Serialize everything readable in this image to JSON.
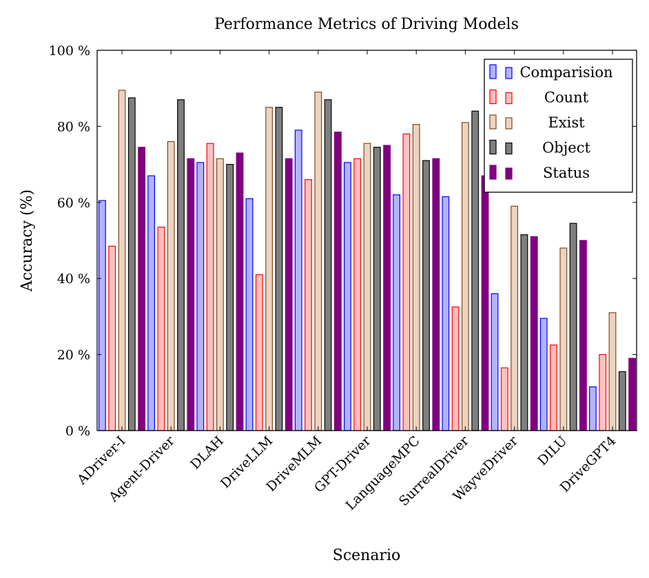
{
  "chart_data": {
    "type": "bar",
    "title": "Performance Metrics of Driving Models",
    "xlabel": "Scenario",
    "ylabel": "Accuracy (%)",
    "ylim": [
      0,
      100
    ],
    "y_ticks": [
      0,
      20,
      40,
      60,
      80,
      100
    ],
    "y_tick_suffix": " %",
    "grid": false,
    "legend_position": "top-right",
    "categories": [
      "ADriver-I",
      "Agent-Driver",
      "DLAH",
      "DriveLLM",
      "DriveMLM",
      "GPT-Driver",
      "LanguageMPC",
      "SurrealDriver",
      "WayveDriver",
      "DILU",
      "DriveGPT4"
    ],
    "series": [
      {
        "name": "Comparision",
        "fill": "#b3b3ff",
        "stroke": "#0000ff",
        "values": [
          60.5,
          67,
          70.5,
          61,
          79,
          70.5,
          62,
          61.5,
          36,
          29.5,
          11.5
        ]
      },
      {
        "name": "Count",
        "fill": "#ffc0c0",
        "stroke": "#ff0000",
        "values": [
          48.5,
          53.5,
          75.5,
          41,
          66,
          71.5,
          78,
          32.5,
          16.5,
          22.5,
          20
        ]
      },
      {
        "name": "Exist",
        "fill": "#ecd3c0",
        "stroke": "#7a4a22",
        "values": [
          89.5,
          76,
          71.5,
          85,
          89,
          75.5,
          80.5,
          81,
          59,
          48,
          31
        ]
      },
      {
        "name": "Object",
        "fill": "#7f7f7f",
        "stroke": "#000000",
        "values": [
          87.5,
          87,
          70,
          85,
          87,
          74.5,
          71,
          84,
          51.5,
          54.5,
          15.5
        ]
      },
      {
        "name": "Status",
        "fill": "#800080",
        "stroke": "#800080",
        "values": [
          74.5,
          71.5,
          73,
          71.5,
          78.5,
          75,
          71.5,
          67,
          51,
          50,
          19
        ]
      }
    ]
  }
}
